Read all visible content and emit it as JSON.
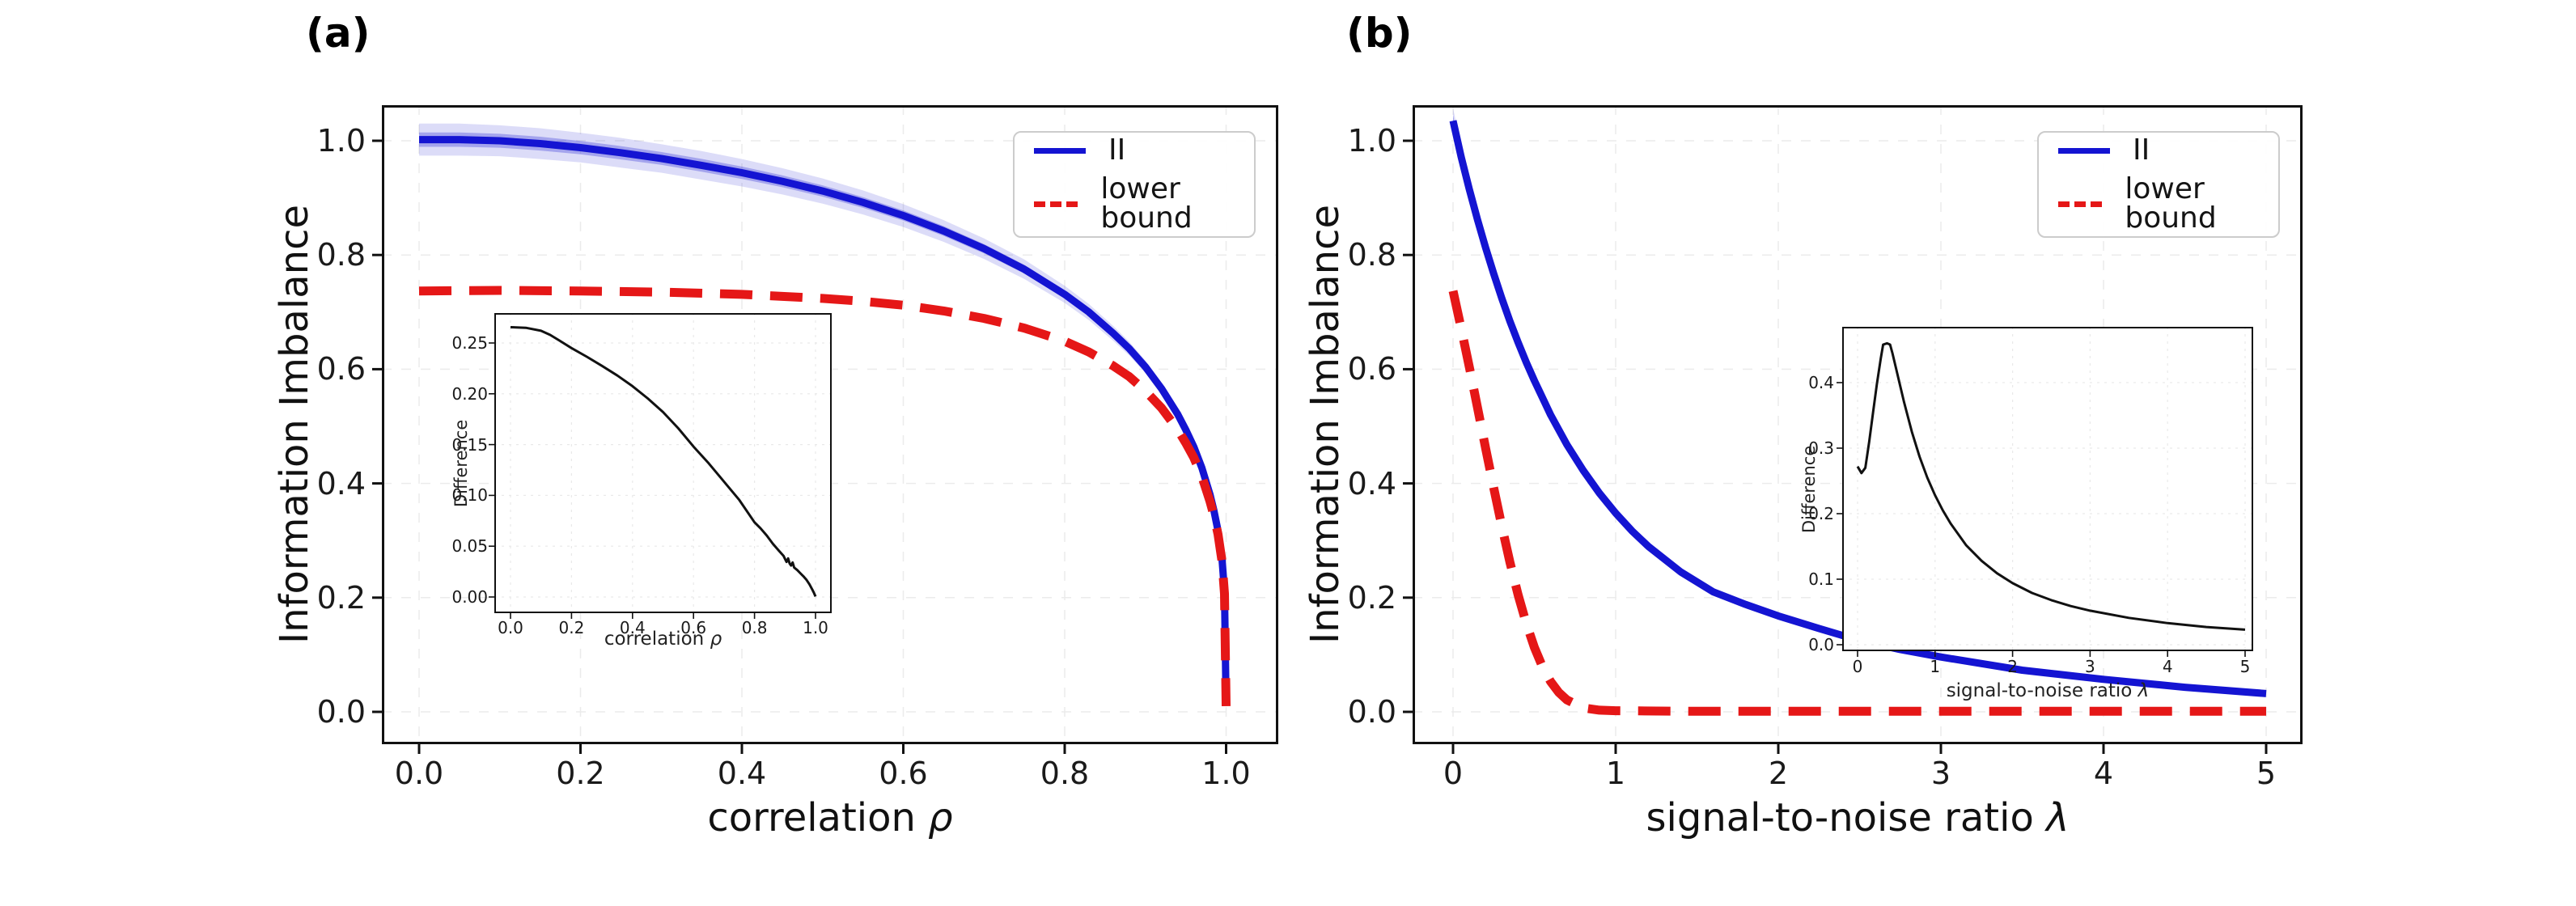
{
  "chart_data": [
    {
      "id": "main_a",
      "type": "line",
      "panel_label": "(a)",
      "xlabel": {
        "text": "correlation ",
        "symbol": "ρ"
      },
      "ylabel": "Information Imbalance",
      "xlim": [
        0,
        1
      ],
      "ylim": [
        0,
        1
      ],
      "grid": true,
      "xticks": {
        "values": [
          0,
          0.2,
          0.4,
          0.6,
          0.8,
          1.0
        ],
        "labels": [
          "0.0",
          "0.2",
          "0.4",
          "0.6",
          "0.8",
          "1.0"
        ]
      },
      "yticks": {
        "values": [
          0,
          0.2,
          0.4,
          0.6,
          0.8,
          1.0
        ],
        "labels": [
          "0.0",
          "0.2",
          "0.4",
          "0.6",
          "0.8",
          "1.0"
        ]
      },
      "legend": {
        "position": "upper right",
        "entries": [
          {
            "label": "II",
            "color": "#1414d2",
            "style": "solid"
          },
          {
            "label": "lower bound",
            "color": "#e51717",
            "style": "dashed"
          }
        ]
      },
      "series": [
        {
          "name": "II",
          "color": "#1414d2",
          "style": "solid",
          "x": [
            0,
            0.05,
            0.1,
            0.15,
            0.2,
            0.25,
            0.3,
            0.35,
            0.4,
            0.45,
            0.5,
            0.55,
            0.6,
            0.65,
            0.7,
            0.75,
            0.8,
            0.83,
            0.86,
            0.88,
            0.9,
            0.92,
            0.94,
            0.95,
            0.96,
            0.97,
            0.98,
            0.985,
            0.99,
            0.995,
            0.998,
            1.0
          ],
          "y": [
            1.002,
            1.002,
            1.0,
            0.995,
            0.988,
            0.979,
            0.969,
            0.957,
            0.944,
            0.929,
            0.912,
            0.892,
            0.869,
            0.842,
            0.811,
            0.775,
            0.731,
            0.7,
            0.663,
            0.636,
            0.604,
            0.566,
            0.521,
            0.494,
            0.464,
            0.427,
            0.381,
            0.352,
            0.317,
            0.267,
            0.21,
            0.012
          ],
          "band": [
            0.028,
            0.028,
            0.027,
            0.027,
            0.026,
            0.026,
            0.025,
            0.025,
            0.024,
            0.023,
            0.022,
            0.021,
            0.02,
            0.019,
            0.018,
            0.017,
            0.015,
            0.014,
            0.013,
            0.012,
            0.011,
            0.01,
            0.009,
            0.009,
            0.008,
            0.007,
            0.006,
            0.006,
            0.005,
            0.004,
            0.003,
            0.002
          ]
        },
        {
          "name": "lower bound",
          "color": "#e51717",
          "style": "dashed",
          "x": [
            0,
            0.1,
            0.2,
            0.3,
            0.4,
            0.5,
            0.55,
            0.6,
            0.65,
            0.7,
            0.75,
            0.8,
            0.83,
            0.86,
            0.88,
            0.9,
            0.92,
            0.94,
            0.95,
            0.96,
            0.97,
            0.98,
            0.985,
            0.99,
            0.995,
            0.998,
            1.0
          ],
          "y": [
            0.737,
            0.738,
            0.737,
            0.735,
            0.731,
            0.724,
            0.719,
            0.712,
            0.702,
            0.689,
            0.672,
            0.649,
            0.63,
            0.606,
            0.587,
            0.562,
            0.532,
            0.494,
            0.471,
            0.445,
            0.412,
            0.369,
            0.343,
            0.311,
            0.263,
            0.207,
            0.01
          ]
        }
      ]
    },
    {
      "id": "inset_a",
      "type": "line",
      "xlabel": {
        "text": "correlation ",
        "symbol": "ρ"
      },
      "ylabel": "Difference",
      "xlim": [
        0,
        1
      ],
      "ylim": [
        0,
        0.25
      ],
      "grid": true,
      "xticks": {
        "values": [
          0,
          0.2,
          0.4,
          0.6,
          0.8,
          1.0
        ],
        "labels": [
          "0.0",
          "0.2",
          "0.4",
          "0.6",
          "0.8",
          "1.0"
        ]
      },
      "yticks": {
        "values": [
          0,
          0.05,
          0.1,
          0.15,
          0.2,
          0.25
        ],
        "labels": [
          "0.00",
          "0.05",
          "0.10",
          "0.15",
          "0.20",
          "0.25"
        ]
      },
      "series": [
        {
          "name": "Difference",
          "color": "#111111",
          "style": "solid",
          "x": [
            0,
            0.05,
            0.1,
            0.13,
            0.16,
            0.2,
            0.25,
            0.3,
            0.35,
            0.4,
            0.45,
            0.5,
            0.55,
            0.6,
            0.65,
            0.7,
            0.75,
            0.8,
            0.82,
            0.84,
            0.86,
            0.88,
            0.895,
            0.9,
            0.905,
            0.91,
            0.915,
            0.92,
            0.925,
            0.93,
            0.94,
            0.95,
            0.96,
            0.97,
            0.98,
            0.99,
            0.995,
            1.0
          ],
          "y": [
            0.2655,
            0.265,
            0.262,
            0.258,
            0.2525,
            0.245,
            0.2365,
            0.2275,
            0.218,
            0.2075,
            0.1955,
            0.182,
            0.166,
            0.148,
            0.1315,
            0.1135,
            0.0955,
            0.0735,
            0.0675,
            0.0605,
            0.0525,
            0.0455,
            0.0405,
            0.0375,
            0.0345,
            0.038,
            0.033,
            0.031,
            0.034,
            0.029,
            0.0265,
            0.0235,
            0.0205,
            0.017,
            0.0125,
            0.007,
            0.004,
            0.0005
          ]
        }
      ]
    },
    {
      "id": "main_b",
      "type": "line",
      "panel_label": "(b)",
      "xlabel": {
        "text": "signal-to-noise ratio ",
        "symbol": "λ"
      },
      "ylabel": "Information Imbalance",
      "xlim": [
        0,
        5
      ],
      "ylim": [
        0,
        1
      ],
      "grid": true,
      "xticks": {
        "values": [
          0,
          1,
          2,
          3,
          4,
          5
        ],
        "labels": [
          "0",
          "1",
          "2",
          "3",
          "4",
          "5"
        ]
      },
      "yticks": {
        "values": [
          0,
          0.2,
          0.4,
          0.6,
          0.8,
          1.0
        ],
        "labels": [
          "0.0",
          "0.2",
          "0.4",
          "0.6",
          "0.8",
          "1.0"
        ]
      },
      "legend": {
        "position": "upper right",
        "entries": [
          {
            "label": "II",
            "color": "#1414d2",
            "style": "solid"
          },
          {
            "label": "lower bound",
            "color": "#e51717",
            "style": "dashed"
          }
        ]
      },
      "series": [
        {
          "name": "II",
          "color": "#1414d2",
          "style": "solid",
          "x": [
            0,
            0.05,
            0.1,
            0.15,
            0.2,
            0.25,
            0.3,
            0.35,
            0.4,
            0.45,
            0.5,
            0.6,
            0.7,
            0.8,
            0.9,
            1.0,
            1.1,
            1.2,
            1.4,
            1.6,
            1.8,
            2.0,
            2.25,
            2.5,
            2.75,
            3.0,
            3.5,
            4.0,
            4.5,
            5.0
          ],
          "y": [
            1.035,
            0.972,
            0.915,
            0.862,
            0.813,
            0.767,
            0.724,
            0.684,
            0.647,
            0.612,
            0.58,
            0.52,
            0.468,
            0.423,
            0.383,
            0.348,
            0.317,
            0.29,
            0.245,
            0.21,
            0.188,
            0.168,
            0.146,
            0.125,
            0.109,
            0.096,
            0.073,
            0.057,
            0.043,
            0.032
          ],
          "band": [
            0.022,
            0.02,
            0.019,
            0.018,
            0.017,
            0.016,
            0.015,
            0.014,
            0.013,
            0.012,
            0.012,
            0.011,
            0.01,
            0.009,
            0.009,
            0.008,
            0.008,
            0.007,
            0.007,
            0.006,
            0.006,
            0.006,
            0.005,
            0.005,
            0.005,
            0.004,
            0.004,
            0.004,
            0.004,
            0.004
          ]
        },
        {
          "name": "lower bound",
          "color": "#e51717",
          "style": "dashed",
          "x": [
            0,
            0.05,
            0.1,
            0.15,
            0.2,
            0.25,
            0.3,
            0.35,
            0.4,
            0.45,
            0.5,
            0.55,
            0.6,
            0.65,
            0.7,
            0.8,
            0.9,
            1.0,
            1.5,
            2.0,
            2.5,
            3.0,
            3.5,
            4.0,
            4.5,
            5.0
          ],
          "y": [
            0.737,
            0.672,
            0.604,
            0.533,
            0.462,
            0.392,
            0.325,
            0.262,
            0.205,
            0.155,
            0.113,
            0.079,
            0.053,
            0.034,
            0.021,
            0.007,
            0.003,
            0.002,
            0.001,
            0.001,
            0.001,
            0.001,
            0.001,
            0.001,
            0.001,
            0.001
          ]
        }
      ]
    },
    {
      "id": "inset_b",
      "type": "line",
      "xlabel": {
        "text": "signal-to-noise ratio ",
        "symbol": "λ"
      },
      "ylabel": "Difference",
      "xlim": [
        0,
        5
      ],
      "ylim": [
        0,
        0.4
      ],
      "grid": true,
      "xticks": {
        "values": [
          0,
          1,
          2,
          3,
          4,
          5
        ],
        "labels": [
          "0",
          "1",
          "2",
          "3",
          "4",
          "5"
        ]
      },
      "yticks": {
        "values": [
          0,
          0.1,
          0.2,
          0.3,
          0.4
        ],
        "labels": [
          "0.0",
          "0.1",
          "0.2",
          "0.3",
          "0.4"
        ]
      },
      "series": [
        {
          "name": "Difference",
          "color": "#111111",
          "style": "solid",
          "x": [
            0,
            0.05,
            0.1,
            0.15,
            0.2,
            0.25,
            0.3,
            0.33,
            0.38,
            0.42,
            0.45,
            0.5,
            0.55,
            0.6,
            0.7,
            0.8,
            0.9,
            1.0,
            1.1,
            1.2,
            1.4,
            1.6,
            1.8,
            2.0,
            2.25,
            2.5,
            2.75,
            3.0,
            3.5,
            4.0,
            4.5,
            5.0
          ],
          "y": [
            0.272,
            0.262,
            0.27,
            0.31,
            0.355,
            0.398,
            0.437,
            0.458,
            0.46,
            0.458,
            0.445,
            0.42,
            0.395,
            0.37,
            0.325,
            0.287,
            0.255,
            0.228,
            0.205,
            0.185,
            0.152,
            0.128,
            0.109,
            0.094,
            0.079,
            0.068,
            0.059,
            0.052,
            0.041,
            0.033,
            0.027,
            0.023
          ]
        }
      ]
    }
  ]
}
